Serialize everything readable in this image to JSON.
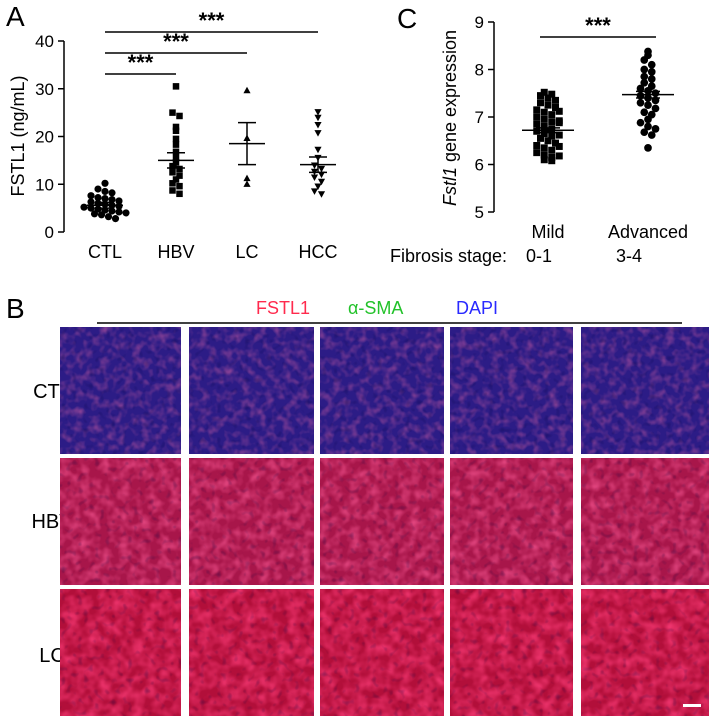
{
  "panels": {
    "a": "A",
    "b": "B",
    "c": "C"
  },
  "chart_data": [
    {
      "type": "scatter",
      "ylabel": "FSTL1 (ng/mL)",
      "ylim": [
        0,
        40
      ],
      "yticks": [
        "0",
        "10",
        "20",
        "30",
        "40"
      ],
      "categories": [
        "CTL",
        "HBV",
        "LC",
        "HCC"
      ],
      "markers": [
        "circle",
        "square",
        "triangle",
        "triangle-down"
      ],
      "means": [
        5.6,
        15.0,
        18.5,
        14.1
      ],
      "errors": [
        0.6,
        1.6,
        4.4,
        1.6
      ],
      "points": [
        [
          10.2,
          9.0,
          8.5,
          8.2,
          7.6,
          7.2,
          7.0,
          6.8,
          6.5,
          6.3,
          6.0,
          5.8,
          5.6,
          5.4,
          5.2,
          5.0,
          4.8,
          4.6,
          4.4,
          4.2,
          4.0,
          3.8,
          3.6,
          3.2,
          2.8
        ],
        [
          30.5,
          25.0,
          24.3,
          22.0,
          21.2,
          19.5,
          18.3,
          16.8,
          15.5,
          14.6,
          13.8,
          13.2,
          12.5,
          11.8,
          11.0,
          10.2,
          9.6,
          8.7,
          8.0
        ],
        [
          29.6,
          19.6,
          11.2,
          10.0
        ],
        [
          25.2,
          24.0,
          22.5,
          20.8,
          17.3,
          15.6,
          14.0,
          13.3,
          12.7,
          12.1,
          11.5,
          10.6,
          9.6,
          8.6,
          8.0
        ]
      ],
      "comparisons": [
        {
          "from": "CTL",
          "to": "HBV",
          "label": "***"
        },
        {
          "from": "CTL",
          "to": "LC",
          "label": "***"
        },
        {
          "from": "CTL",
          "to": "HCC",
          "label": "***"
        }
      ]
    },
    {
      "type": "scatter",
      "ylabel_italic": "Fstl1",
      "ylabel_rest": " gene expression",
      "ylim": [
        5,
        9
      ],
      "yticks": [
        "5",
        "6",
        "7",
        "8",
        "9"
      ],
      "categories": [
        "Mild",
        "Advanced"
      ],
      "markers": [
        "square",
        "circle"
      ],
      "group_prefix": "Fibrosis stage:",
      "stage_labels": [
        "0-1",
        "3-4"
      ],
      "means": [
        6.72,
        7.47
      ],
      "errors": [
        0.05,
        0.07
      ],
      "points": [
        [
          7.52,
          7.48,
          7.45,
          7.4,
          7.35,
          7.3,
          7.25,
          7.2,
          7.15,
          7.1,
          7.05,
          7.0,
          6.95,
          6.9,
          6.85,
          6.8,
          6.75,
          6.7,
          6.65,
          6.6,
          6.55,
          6.5,
          6.45,
          6.4,
          6.35,
          6.3,
          6.25,
          6.2,
          6.15,
          6.1,
          6.08,
          7.12,
          6.88,
          6.62,
          6.38,
          6.18,
          6.92
        ],
        [
          8.38,
          8.3,
          8.2,
          8.1,
          8.0,
          7.95,
          7.85,
          7.8,
          7.72,
          7.65,
          7.6,
          7.55,
          7.5,
          7.45,
          7.4,
          7.35,
          7.3,
          7.25,
          7.18,
          7.1,
          7.05,
          6.95,
          6.88,
          6.8,
          6.75,
          6.68,
          6.62,
          6.35
        ]
      ],
      "comparisons": [
        {
          "from": "Mild",
          "to": "Advanced",
          "label": "***"
        }
      ]
    }
  ],
  "micrographs": {
    "legend": [
      "FSTL1",
      "α-SMA",
      "DAPI"
    ],
    "legend_colors": [
      "#ff2a4d",
      "#22c22a",
      "#2a2aff"
    ],
    "rows": [
      "CTL",
      "HBV",
      "LC"
    ],
    "row_tints": [
      "#2c1c86",
      "#a8164a",
      "#b20f3a"
    ]
  }
}
